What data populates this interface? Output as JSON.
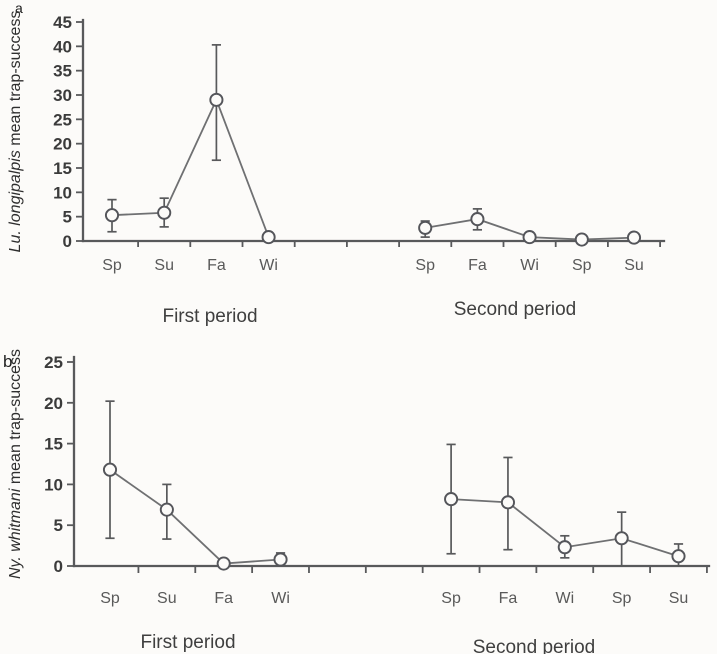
{
  "figure": {
    "background": "#fcfbf9",
    "axis_color": "#58595b",
    "series_line_color": "#6f7072",
    "marker_style": "open-circle",
    "marker_fill": "#fcfbf9"
  },
  "chart_data": [
    {
      "type": "line",
      "panel_letter": "a",
      "ylabel_italic": "Lu. longipalpis",
      "ylabel_rest": " mean trap-success",
      "ylabel_full": "Lu. longipalpis mean trap-success",
      "ylim": [
        0,
        45
      ],
      "yticks": [
        0,
        5,
        10,
        15,
        20,
        25,
        30,
        35,
        40,
        45
      ],
      "grid": false,
      "legend": "none",
      "error_bars": true,
      "groups": [
        {
          "label": "First period",
          "categories": [
            "Sp",
            "Su",
            "Fa",
            "Wi"
          ],
          "means": [
            5.3,
            5.8,
            29.0,
            0.8
          ],
          "err_low": [
            1.9,
            2.9,
            16.6,
            0.8
          ],
          "err_high": [
            8.5,
            8.8,
            40.3,
            0.8
          ]
        },
        {
          "label": "Second period",
          "categories": [
            "Sp",
            "Fa",
            "Wi",
            "Sp",
            "Su"
          ],
          "means": [
            2.7,
            4.5,
            0.8,
            0.3,
            0.7
          ],
          "err_low": [
            0.8,
            2.3,
            0.8,
            0.3,
            0.7
          ],
          "err_high": [
            4.1,
            6.6,
            0.8,
            0.3,
            0.7
          ]
        }
      ]
    },
    {
      "type": "line",
      "panel_letter": "b",
      "ylabel_italic": "Ny. whitmani",
      "ylabel_rest": "  mean trap-success",
      "ylabel_full": "Ny. whitmani  mean trap-success",
      "ylim": [
        0,
        25
      ],
      "yticks": [
        0,
        5,
        10,
        15,
        20,
        25
      ],
      "grid": false,
      "legend": "none",
      "error_bars": true,
      "groups": [
        {
          "label": "First period",
          "categories": [
            "Sp",
            "Su",
            "Fa",
            "Wi"
          ],
          "means": [
            11.8,
            6.9,
            0.3,
            0.8
          ],
          "err_low": [
            3.4,
            3.3,
            0.3,
            0.2
          ],
          "err_high": [
            20.2,
            10.0,
            0.3,
            1.6
          ]
        },
        {
          "label": "Second period",
          "categories": [
            "Sp",
            "Fa",
            "Wi",
            "Sp",
            "Su"
          ],
          "means": [
            8.2,
            7.8,
            2.3,
            3.4,
            1.2
          ],
          "err_low": [
            1.5,
            2.0,
            1.0,
            0.0,
            0.0
          ],
          "err_high": [
            14.9,
            13.3,
            3.7,
            6.6,
            2.7
          ]
        }
      ]
    }
  ]
}
